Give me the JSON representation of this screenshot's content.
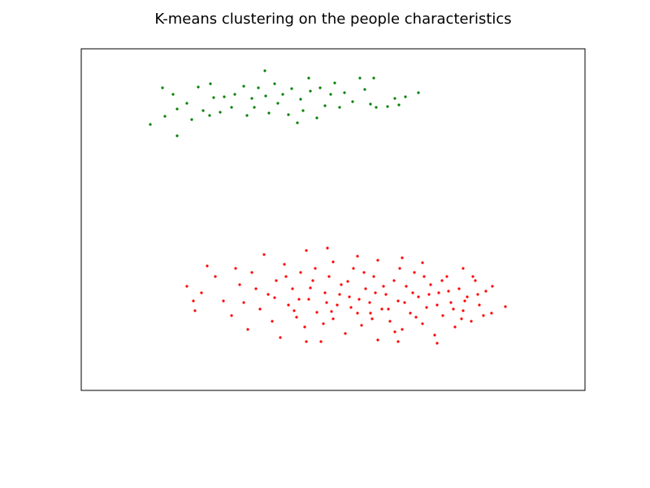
{
  "chart_data": {
    "type": "scatter",
    "title": "K-means clustering on the people characteristics",
    "xlim": [
      0,
      620
    ],
    "ylim": [
      0,
      420
    ],
    "series": [
      {
        "color": "#008000",
        "x": [
          85,
          118,
          100,
          113,
          103,
          118,
          130,
          136,
          144,
          150,
          159,
          163,
          158,
          171,
          176,
          185,
          189,
          200,
          204,
          210,
          213,
          218,
          226,
          227,
          231,
          238,
          242,
          248,
          255,
          259,
          266,
          270,
          273,
          280,
          282,
          290,
          294,
          300,
          307,
          312,
          318,
          324,
          334,
          343,
          349,
          356,
          360,
          363,
          377,
          386,
          391,
          399,
          415
        ],
        "y": [
          327,
          313,
          372,
          364,
          337,
          346,
          353,
          333,
          373,
          344,
          377,
          360,
          338,
          342,
          361,
          348,
          364,
          374,
          338,
          359,
          348,
          372,
          393,
          362,
          341,
          377,
          353,
          364,
          339,
          371,
          329,
          358,
          344,
          384,
          368,
          335,
          372,
          350,
          364,
          378,
          348,
          366,
          355,
          384,
          370,
          352,
          384,
          348,
          349,
          359,
          351,
          361,
          366
        ]
      },
      {
        "color": "#ff0000",
        "x": [
          303,
          277,
          225,
          340,
          395,
          155,
          190,
          250,
          310,
          365,
          420,
          470,
          130,
          148,
          140,
          165,
          175,
          185,
          195,
          205,
          210,
          220,
          230,
          235,
          240,
          245,
          255,
          260,
          265,
          270,
          275,
          280,
          285,
          290,
          295,
          300,
          305,
          310,
          315,
          320,
          325,
          330,
          335,
          340,
          345,
          350,
          355,
          360,
          365,
          370,
          375,
          380,
          385,
          390,
          395,
          400,
          405,
          410,
          415,
          420,
          425,
          430,
          435,
          440,
          445,
          450,
          455,
          460,
          465,
          470,
          475,
          480,
          485,
          490,
          498,
          505,
          522,
          506,
          495,
          472,
          238,
          262,
          288,
          298,
          318,
          332,
          348,
          358,
          372,
          386,
          398,
          412,
          428,
          444,
          458,
          268,
          282,
          308,
          328,
          342,
          362,
          378,
          392,
          408,
          422,
          438,
          452,
          468,
          488,
          138,
          200,
          215,
          252,
          438,
          277,
          390,
          482,
          302,
          356
        ],
        "y": [
          175,
          172,
          167,
          165,
          163,
          153,
          150,
          155,
          158,
          160,
          157,
          150,
          128,
          120,
          98,
          140,
          110,
          92,
          130,
          75,
          145,
          100,
          118,
          85,
          135,
          65,
          105,
          125,
          90,
          145,
          78,
          112,
          135,
          96,
          60,
          120,
          140,
          88,
          105,
          130,
          70,
          115,
          150,
          95,
          80,
          125,
          108,
          140,
          62,
          100,
          118,
          85,
          135,
          110,
          75,
          128,
          95,
          145,
          115,
          82,
          102,
          130,
          68,
          120,
          92,
          140,
          108,
          78,
          125,
          98,
          115,
          85,
          135,
          105,
          122,
          95,
          103,
          128,
          92,
          110,
          114,
          98,
          150,
          82,
          118,
          102,
          145,
          88,
          128,
          72,
          108,
          90,
          118,
          135,
          100,
          112,
          126,
          97,
          134,
          112,
          120,
          100,
          150,
          120,
          140,
          105,
          122,
          88,
          118,
          110,
          108,
          125,
          140,
          58,
          60,
          60,
          140,
          108,
          95
        ]
      }
    ]
  }
}
